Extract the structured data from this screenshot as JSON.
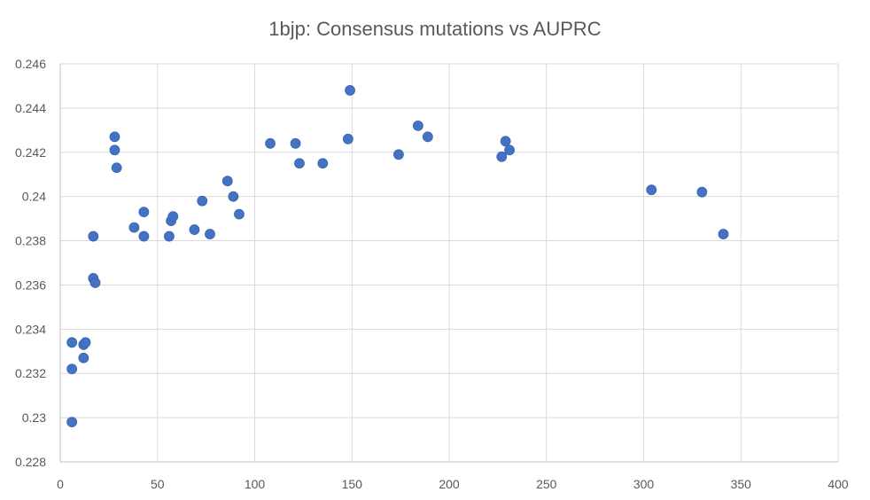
{
  "chart_data": {
    "type": "scatter",
    "title": "1bjp: Consensus mutations vs AUPRC",
    "xlabel": "",
    "ylabel": "",
    "xlim": [
      0,
      400
    ],
    "ylim": [
      0.228,
      0.246
    ],
    "x_ticks": [
      0,
      50,
      100,
      150,
      200,
      250,
      300,
      350,
      400
    ],
    "x_tick_labels": [
      "0",
      "50",
      "100",
      "150",
      "200",
      "250",
      "300",
      "350",
      "400"
    ],
    "y_ticks": [
      0.228,
      0.23,
      0.232,
      0.234,
      0.236,
      0.238,
      0.24,
      0.242,
      0.244,
      0.246
    ],
    "y_tick_labels": [
      "0.228",
      "0.23",
      "0.232",
      "0.234",
      "0.236",
      "0.238",
      "0.24",
      "0.242",
      "0.244",
      "0.246"
    ],
    "grid": true,
    "legend": "none",
    "marker_color": "#4472c4",
    "series": [
      {
        "x": [
          6,
          6,
          6,
          12,
          12,
          13,
          17,
          17,
          18,
          28,
          28,
          29,
          38,
          43,
          43,
          56,
          57,
          58,
          69,
          73,
          77,
          86,
          89,
          92,
          108,
          121,
          123,
          135,
          148,
          149,
          174,
          184,
          189,
          227,
          229,
          231,
          304,
          330,
          341
        ],
        "y": [
          0.2298,
          0.2322,
          0.2334,
          0.2327,
          0.2333,
          0.2334,
          0.2382,
          0.2363,
          0.2361,
          0.2427,
          0.2421,
          0.2413,
          0.2386,
          0.2382,
          0.2393,
          0.2382,
          0.2389,
          0.2391,
          0.2385,
          0.2398,
          0.2383,
          0.2407,
          0.24,
          0.2392,
          0.2424,
          0.2424,
          0.2415,
          0.2415,
          0.2426,
          0.2448,
          0.2419,
          0.2432,
          0.2427,
          0.2418,
          0.2425,
          0.2421,
          0.2403,
          0.2402,
          0.2383
        ]
      }
    ]
  }
}
